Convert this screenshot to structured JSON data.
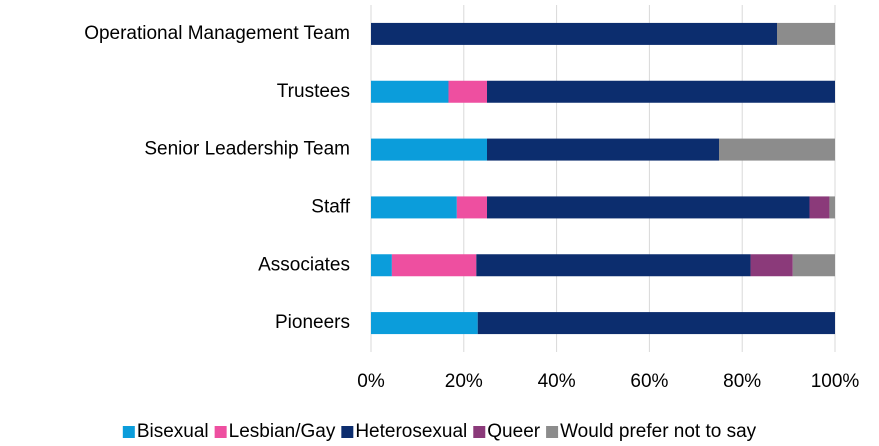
{
  "chart_data": {
    "type": "stacked_barh",
    "categories": [
      "Operational Management Team",
      "Trustees",
      "Senior Leadership Team",
      "Staff",
      "Associates",
      "Pioneers"
    ],
    "series": [
      {
        "name": "Bisexual",
        "color": "#0b9ddb",
        "values": [
          0,
          16.7,
          25,
          18.5,
          4.5,
          23
        ]
      },
      {
        "name": "Lesbian/Gay",
        "color": "#ee4fa0",
        "values": [
          0,
          8.3,
          0,
          6.5,
          18.2,
          0
        ]
      },
      {
        "name": "Heterosexual",
        "color": "#0c2d6e",
        "values": [
          87.5,
          75,
          50,
          69.5,
          59.1,
          77
        ]
      },
      {
        "name": "Queer",
        "color": "#8b3a7a",
        "values": [
          0,
          0,
          0,
          4.3,
          9.1,
          0
        ]
      },
      {
        "name": "Would prefer not to say",
        "color": "#8c8c8c",
        "values": [
          12.5,
          0,
          25,
          1.2,
          9.1,
          0
        ]
      }
    ],
    "xlim": [
      0,
      100
    ],
    "xticks": [
      {
        "value": 0,
        "label": "0%"
      },
      {
        "value": 20,
        "label": "20%"
      },
      {
        "value": 40,
        "label": "40%"
      },
      {
        "value": 60,
        "label": "60%"
      },
      {
        "value": 80,
        "label": "80%"
      },
      {
        "value": 100,
        "label": "100%"
      }
    ],
    "grid": true,
    "legend": "bottom"
  }
}
